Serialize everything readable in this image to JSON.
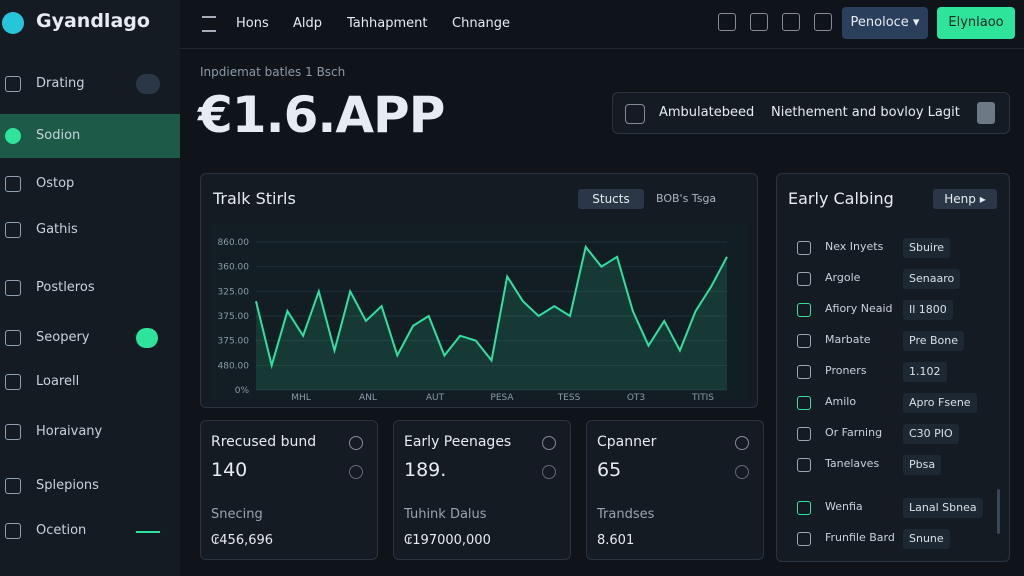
{
  "brand": "Gyandlago",
  "nav": [
    "Hons",
    "Aldp",
    "Tahhapment",
    "Chnange"
  ],
  "buttons": {
    "primary": "Penoloce",
    "secondary": "Elynlaoo"
  },
  "sidebar": [
    "Drating",
    "Sodion",
    "Ostop",
    "Gathis",
    "Postleros",
    "Seopery",
    "Loarell",
    "Horaivany",
    "Splepions",
    "Ocetion"
  ],
  "header": {
    "subtitle": "Inpdiemat batles 1 Bsch",
    "title": "€1.6.APP",
    "info": [
      "Ambulatebeed",
      "Niethement and bovloy Lagit"
    ]
  },
  "chart": {
    "type": "line",
    "title": "Tralk Stirls",
    "controls": [
      "Stucts",
      "BOB's Tsga"
    ],
    "color": "#2fe0a0",
    "ylim": [
      0,
      6
    ],
    "yticks": [
      {
        "value": 0,
        "label": "0%"
      },
      {
        "value": 1,
        "label": "480.00"
      },
      {
        "value": 2,
        "label": "375.00"
      },
      {
        "value": 3,
        "label": "375.00"
      },
      {
        "value": 4,
        "label": "325.00"
      },
      {
        "value": 5,
        "label": "360.00"
      },
      {
        "value": 6,
        "label": "860.00"
      }
    ],
    "x_labels": [
      "MHL",
      "ANL",
      "AUT",
      "PESA",
      "TESS",
      "OT3",
      "TITIS"
    ],
    "values": [
      3.6,
      1.0,
      3.2,
      2.2,
      4.0,
      1.6,
      4.0,
      2.8,
      3.4,
      1.4,
      2.6,
      3.0,
      1.4,
      2.2,
      2.0,
      1.2,
      4.6,
      3.6,
      3.0,
      3.4,
      3.0,
      5.8,
      5.0,
      5.4,
      3.2,
      1.8,
      2.8,
      1.6,
      3.2,
      4.2,
      5.4
    ]
  },
  "panel": {
    "title": "Early Calbing",
    "button": "Henp",
    "rows": [
      [
        "Nex Inyets",
        "Sbuire"
      ],
      [
        "Argole",
        "Senaaro"
      ],
      [
        "Afiory Neaid",
        "Il 1800"
      ],
      [
        "Marbate",
        "Pre Bone"
      ],
      [
        "Proners",
        "1.102"
      ],
      [
        "Amilo",
        "Apro Fsene"
      ],
      [
        "Or Farning",
        "C30 PIO"
      ],
      [
        "Tanelaves",
        "Pbsa"
      ],
      [
        "Wenfia",
        "Lanal Sbnea"
      ],
      [
        "Frunfile Bard",
        "Snune"
      ]
    ]
  },
  "cards": [
    [
      "Rrecused bund",
      "140",
      "Snecing",
      "₢456,696"
    ],
    [
      "Early Peenages",
      "189.",
      "Tuhink Dalus",
      "₢197000,000"
    ],
    [
      "Cpanner",
      "65",
      "Trandses",
      "8.601"
    ]
  ]
}
